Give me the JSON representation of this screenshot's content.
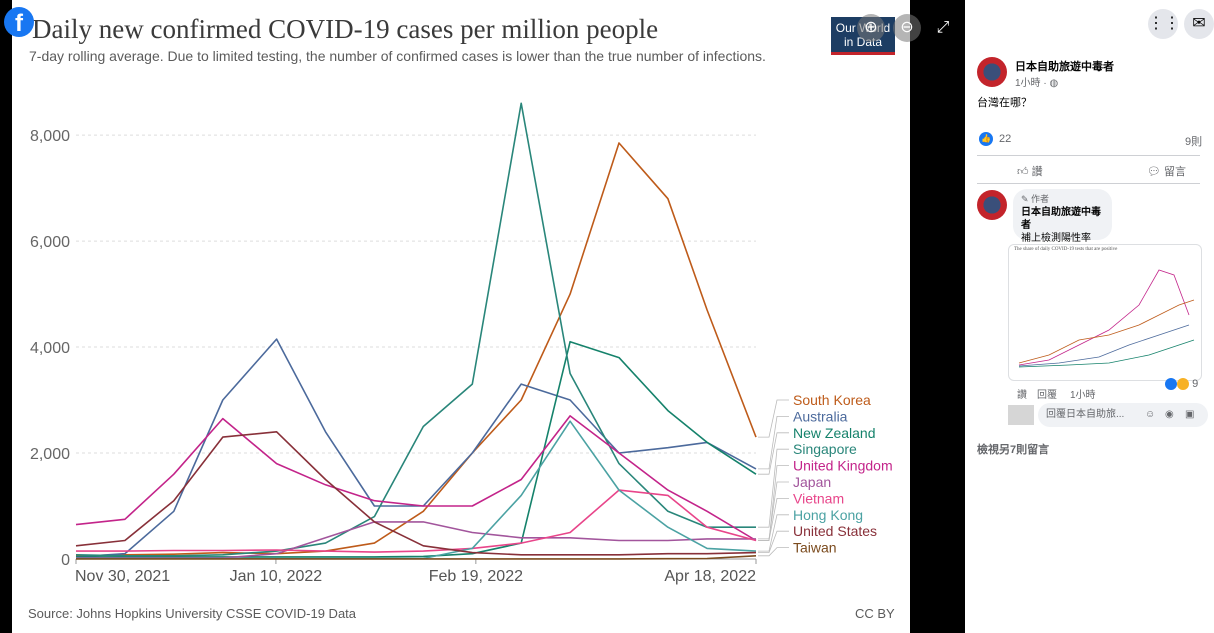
{
  "facebook_logo": "f",
  "viewer": {
    "zoom_in_icon": "zoom-in-icon",
    "zoom_out_icon": "zoom-out-icon",
    "fullscreen_icon": "fullscreen-icon"
  },
  "chart": {
    "title": "Daily new confirmed COVID-19 cases per million people",
    "subtitle": "7-day rolling average. Due to limited testing, the number of confirmed cases is lower than the true number of infections.",
    "logo_line1": "Our World",
    "logo_line2": "in Data",
    "source": "Source: Johns Hopkins University CSSE COVID-19 Data",
    "license": "CC BY"
  },
  "chart_data": {
    "type": "line",
    "x": [
      "2021-11-30",
      "2021-12-10",
      "2021-12-20",
      "2021-12-30",
      "2022-01-10",
      "2022-01-20",
      "2022-01-30",
      "2022-02-09",
      "2022-02-19",
      "2022-03-01",
      "2022-03-11",
      "2022-03-21",
      "2022-03-31",
      "2022-04-08",
      "2022-04-18"
    ],
    "x_ticks": [
      "Nov 30, 2021",
      "Jan 10, 2022",
      "Feb 19, 2022",
      "Apr 18, 2022"
    ],
    "y_ticks": [
      "0",
      "2,000",
      "4,000",
      "6,000",
      "8,000"
    ],
    "ylim": [
      0,
      8700
    ],
    "grid": true,
    "legend_placement": "right",
    "series": [
      {
        "name": "South Korea",
        "color": "#be5b1a",
        "values": [
          60,
          80,
          90,
          120,
          100,
          150,
          300,
          900,
          2000,
          3000,
          5000,
          7850,
          6800,
          4700,
          2300
        ]
      },
      {
        "name": "Australia",
        "color": "#4c6a9c",
        "values": [
          40,
          100,
          900,
          3000,
          4150,
          2400,
          1000,
          1000,
          2000,
          3300,
          3000,
          2000,
          2100,
          2200,
          1700
        ]
      },
      {
        "name": "New Zealand",
        "color": "#15826b",
        "values": [
          40,
          40,
          40,
          40,
          40,
          40,
          40,
          50,
          100,
          300,
          4100,
          3800,
          2800,
          2200,
          1600
        ]
      },
      {
        "name": "Singapore",
        "color": "#29867a",
        "values": [
          80,
          60,
          60,
          80,
          150,
          300,
          800,
          2500,
          3300,
          8600,
          3500,
          1800,
          900,
          600,
          600
        ]
      },
      {
        "name": "United Kingdom",
        "color": "#c3248a",
        "values": [
          650,
          750,
          1600,
          2650,
          1800,
          1400,
          1100,
          1000,
          1000,
          1500,
          2700,
          2000,
          1300,
          900,
          350
        ]
      },
      {
        "name": "Japan",
        "color": "#a2559c",
        "values": [
          20,
          20,
          20,
          20,
          100,
          400,
          700,
          700,
          500,
          400,
          400,
          350,
          350,
          380,
          380
        ]
      },
      {
        "name": "Vietnam",
        "color": "#e8458a",
        "values": [
          150,
          150,
          160,
          160,
          170,
          150,
          130,
          150,
          200,
          300,
          500,
          1300,
          1200,
          600,
          350
        ]
      },
      {
        "name": "Hong Kong",
        "color": "#4ba2a3",
        "values": [
          10,
          10,
          10,
          10,
          10,
          10,
          10,
          10,
          200,
          1200,
          2600,
          1300,
          600,
          200,
          150
        ]
      },
      {
        "name": "United States",
        "color": "#883039",
        "values": [
          250,
          350,
          1100,
          2300,
          2400,
          1500,
          700,
          250,
          120,
          80,
          80,
          80,
          100,
          100,
          120
        ]
      },
      {
        "name": "Taiwan",
        "color": "#7b4b1e",
        "values": [
          1,
          1,
          1,
          1,
          1,
          1,
          1,
          1,
          1,
          1,
          1,
          2,
          5,
          10,
          60
        ]
      }
    ]
  },
  "sidebar": {
    "menu_icon": "grid-menu-icon",
    "messenger_icon": "messenger-icon",
    "post": {
      "author": "日本自助旅遊中毒者",
      "time": "1小時 · ",
      "text": "台灣在哪？",
      "like_count": "22",
      "share_count": "9則",
      "like_action": "讚",
      "comment_action": "留言"
    },
    "comment": {
      "badge": "作者",
      "author": "日本自助旅遊中毒者",
      "text": "補上檢測陽性率",
      "thumb_title": "The share of daily COVID-19 tests that are positive",
      "like": "讚",
      "reply": "回覆",
      "time": "1小時",
      "reaction_count": "9",
      "reply_placeholder": "回覆日本自助旅..."
    },
    "view_more": "檢視另7則留言"
  }
}
